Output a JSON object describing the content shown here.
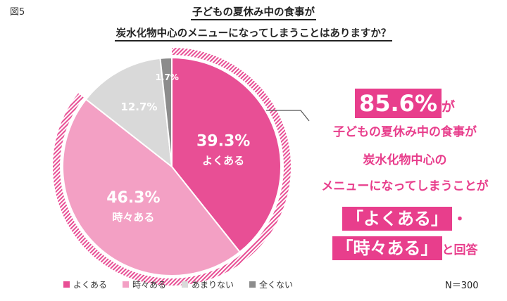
{
  "figure_label": "図5",
  "chart_data": {
    "type": "pie",
    "title_line1": "子どもの夏休み中の食事が",
    "title_line2": "炭水化物中心のメニューになってしまうことはありますか？",
    "categories": [
      "よくある",
      "時々ある",
      "あまりない",
      "全くない"
    ],
    "values": [
      39.3,
      46.3,
      12.7,
      1.7
    ],
    "labels": [
      "39.3%",
      "46.3%",
      "12.7%",
      "1.7%"
    ],
    "colors": [
      "#e84f95",
      "#f3a0c4",
      "#d9d9d9",
      "#8c8c8c"
    ],
    "legend_position": "bottom",
    "n_label": "N＝300"
  },
  "callout": {
    "highlight": "85.6%",
    "highlight_suffix": "が",
    "line1": "子どもの夏休み中の食事が",
    "line2": "炭水化物中心の",
    "line3": "メニューになってしまうことが",
    "answer1": "「よくある」",
    "answer1_suffix": "・",
    "answer2": "「時々ある」",
    "answer2_suffix": "と回答",
    "accent_color": "#e83e8c"
  }
}
